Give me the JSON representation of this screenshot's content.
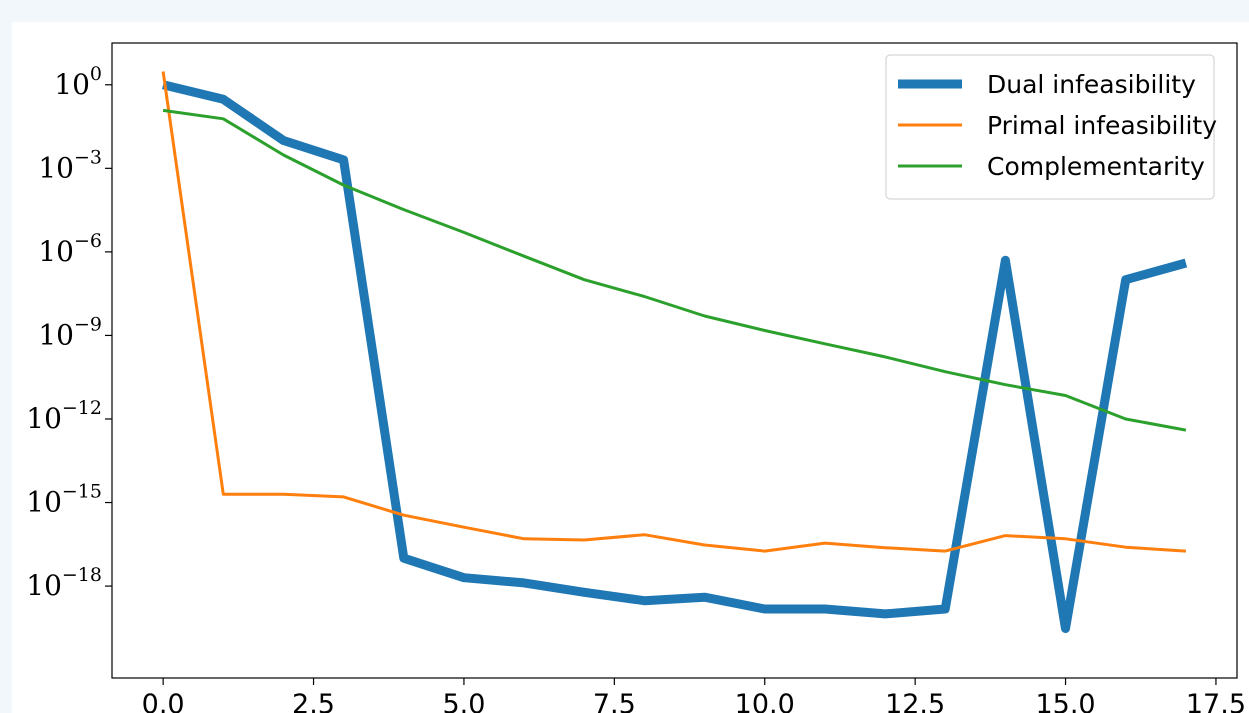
{
  "chart_data": {
    "type": "line",
    "title": "",
    "xlabel": "",
    "ylabel": "",
    "yscale": "log",
    "xlim": [
      -0.85,
      17.85
    ],
    "ylim_log10": [
      -21.3,
      1.5
    ],
    "xticks": [
      0.0,
      2.5,
      5.0,
      7.5,
      10.0,
      12.5,
      15.0,
      17.5
    ],
    "xtick_labels": [
      "0.0",
      "2.5",
      "5.0",
      "7.5",
      "10.0",
      "12.5",
      "15.0",
      "17.5"
    ],
    "yticks": [
      {
        "base": "10",
        "exp": "0",
        "log10": 0
      },
      {
        "base": "10",
        "exp": "−3",
        "log10": -3
      },
      {
        "base": "10",
        "exp": "−6",
        "log10": -6
      },
      {
        "base": "10",
        "exp": "−9",
        "log10": -9
      },
      {
        "base": "10",
        "exp": "−12",
        "log10": -12
      },
      {
        "base": "10",
        "exp": "−15",
        "log10": -15
      },
      {
        "base": "10",
        "exp": "−18",
        "log10": -18
      }
    ],
    "grid": false,
    "legend_position": "top-right",
    "x": [
      0,
      1,
      2,
      3,
      4,
      5,
      6,
      7,
      8,
      9,
      10,
      11,
      12,
      13,
      14,
      15,
      16,
      17
    ],
    "series": [
      {
        "name": "Dual infeasibility",
        "color": "#1f77b4",
        "stroke_width": 9,
        "values": [
          1.0,
          0.3,
          0.01,
          0.002,
          1e-17,
          2e-18,
          1.3e-18,
          6e-19,
          3e-19,
          4e-19,
          1.5e-19,
          1.5e-19,
          1e-19,
          1.5e-19,
          5e-07,
          3e-20,
          1e-07,
          4e-07
        ]
      },
      {
        "name": "Primal infeasibility",
        "color": "#ff7f0e",
        "stroke_width": 3,
        "values": [
          3.0,
          2e-15,
          2e-15,
          1.6e-15,
          3.5e-16,
          1.3e-16,
          5e-17,
          4.5e-17,
          7e-17,
          3e-17,
          1.8e-17,
          3.5e-17,
          2.4e-17,
          1.8e-17,
          6.5e-17,
          5e-17,
          2.5e-17,
          1.8e-17
        ]
      },
      {
        "name": "Complementarity",
        "color": "#2ca02c",
        "stroke_width": 3,
        "values": [
          0.12,
          0.06,
          0.003,
          0.00025,
          3.3e-05,
          5e-06,
          7e-07,
          1e-07,
          2.5e-08,
          5e-09,
          1.5e-09,
          5e-10,
          1.7e-10,
          5e-11,
          1.7e-11,
          7e-12,
          1e-12,
          4e-13
        ]
      }
    ]
  }
}
